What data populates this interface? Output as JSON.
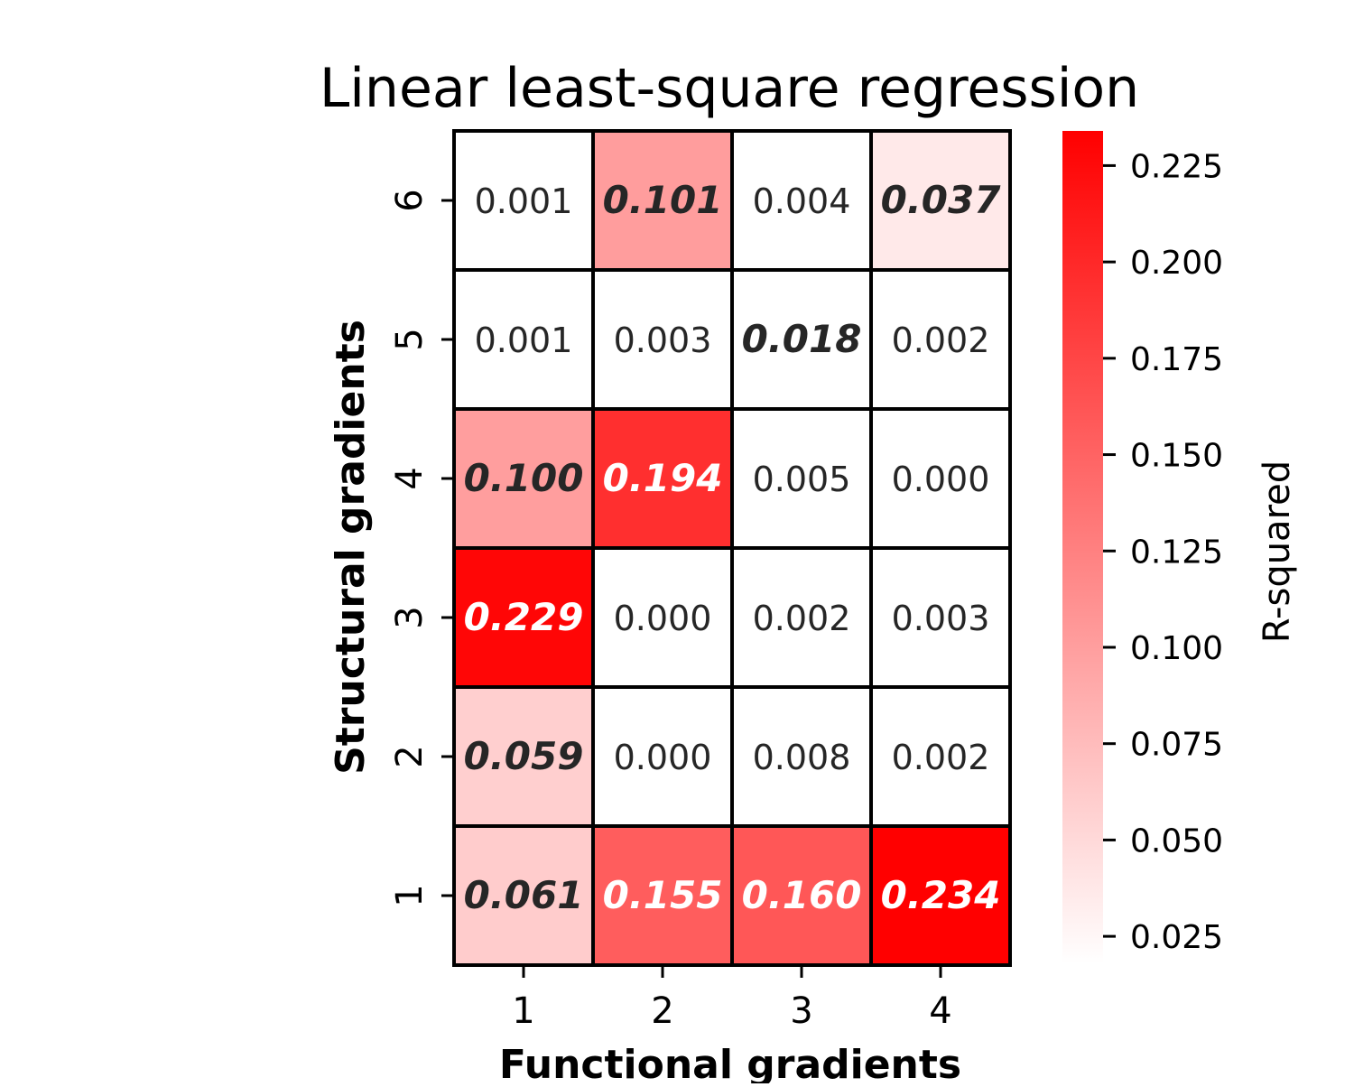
{
  "chart_data": {
    "type": "heatmap",
    "title": "Linear least-square regression",
    "xlabel": "Functional gradients",
    "ylabel": "Structural gradients",
    "x_categories": [
      "1",
      "2",
      "3",
      "4"
    ],
    "y_categories": [
      "6",
      "5",
      "4",
      "3",
      "2",
      "1"
    ],
    "values": [
      [
        0.001,
        0.101,
        0.004,
        0.037
      ],
      [
        0.001,
        0.003,
        0.018,
        0.002
      ],
      [
        0.1,
        0.194,
        0.005,
        0.0
      ],
      [
        0.229,
        0.0,
        0.002,
        0.003
      ],
      [
        0.059,
        0.0,
        0.008,
        0.002
      ],
      [
        0.061,
        0.155,
        0.16,
        0.234
      ]
    ],
    "cell_labels": [
      [
        "0.001",
        "0.101",
        "0.004",
        "0.037"
      ],
      [
        "0.001",
        "0.003",
        "0.018",
        "0.002"
      ],
      [
        "0.100",
        "0.194",
        "0.005",
        "0.000"
      ],
      [
        "0.229",
        "0.000",
        "0.002",
        "0.003"
      ],
      [
        "0.059",
        "0.000",
        "0.008",
        "0.002"
      ],
      [
        "0.061",
        "0.155",
        "0.160",
        "0.234"
      ]
    ],
    "highlighted": [
      [
        false,
        true,
        false,
        true
      ],
      [
        false,
        false,
        true,
        false
      ],
      [
        true,
        true,
        false,
        false
      ],
      [
        true,
        false,
        false,
        false
      ],
      [
        true,
        false,
        false,
        false
      ],
      [
        true,
        true,
        true,
        true
      ]
    ],
    "colorbar": {
      "label": "R-squared",
      "range": [
        0.018,
        0.234
      ],
      "ticks": [
        "0.025",
        "0.050",
        "0.075",
        "0.100",
        "0.125",
        "0.150",
        "0.175",
        "0.200",
        "0.225"
      ],
      "color_low": "#ffffff",
      "color_high": "#ff0000"
    },
    "highlight_style": "bold italic",
    "text_dark": "#262626",
    "text_light": "#ffffff",
    "grid": true
  }
}
